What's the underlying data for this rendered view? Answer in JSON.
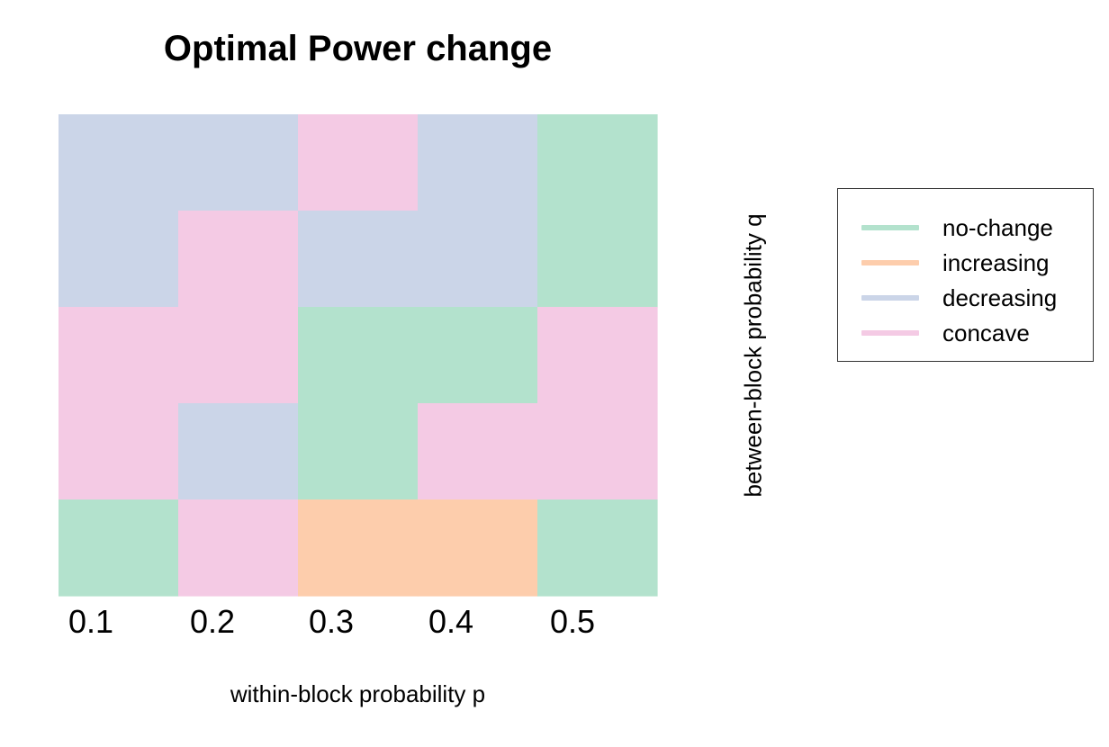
{
  "chart_data": {
    "type": "heatmap",
    "title": "Optimal Power change",
    "xlabel": "within-block probability p",
    "ylabel": "between-block probability q",
    "x_tick_labels": [
      "0.1",
      "0.2",
      "0.3",
      "0.4",
      "0.5"
    ],
    "categories": [
      "no-change",
      "increasing",
      "decreasing",
      "concave"
    ],
    "colors": {
      "no-change": "#b3e2cd",
      "increasing": "#fdcdac",
      "decreasing": "#cbd5e8",
      "concave": "#f4cae4"
    },
    "grid_rows_top_to_bottom": [
      [
        "decreasing",
        "decreasing",
        "concave",
        "decreasing",
        "no-change"
      ],
      [
        "decreasing",
        "concave",
        "decreasing",
        "decreasing",
        "no-change"
      ],
      [
        "concave",
        "concave",
        "no-change",
        "no-change",
        "concave"
      ],
      [
        "concave",
        "decreasing",
        "no-change",
        "concave",
        "concave"
      ],
      [
        "no-change",
        "concave",
        "increasing",
        "increasing",
        "no-change"
      ]
    ],
    "legend": {
      "placement": "right",
      "entries": [
        "no-change",
        "increasing",
        "decreasing",
        "concave"
      ]
    },
    "grid": false
  }
}
